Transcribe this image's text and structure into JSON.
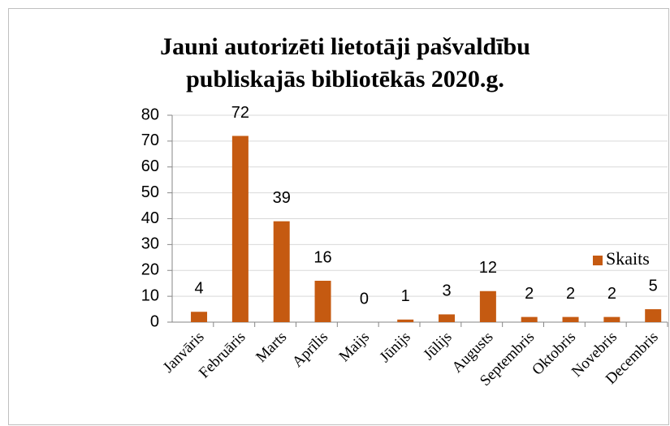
{
  "chart_data": {
    "type": "bar",
    "title": "Jauni autorizēti lietotāji pašvaldību",
    "subtitle": "publiskajās bibliotēkās 2020.g.",
    "categories": [
      "Janvāris",
      "Februāris",
      "Marts",
      "Aprīlis",
      "Maijs",
      "Jūnijs",
      "Jūlijs",
      "Augusts",
      "Septembris",
      "Oktobris",
      "Novebris",
      "Decembris"
    ],
    "series": [
      {
        "name": "Skaits",
        "color": "#c55a11",
        "values": [
          4,
          72,
          39,
          16,
          0,
          1,
          3,
          12,
          2,
          2,
          2,
          5
        ]
      }
    ],
    "ylim": [
      0,
      80
    ],
    "yticks": [
      0,
      10,
      20,
      30,
      40,
      50,
      60,
      70,
      80
    ],
    "grid": true,
    "legend": "right"
  }
}
